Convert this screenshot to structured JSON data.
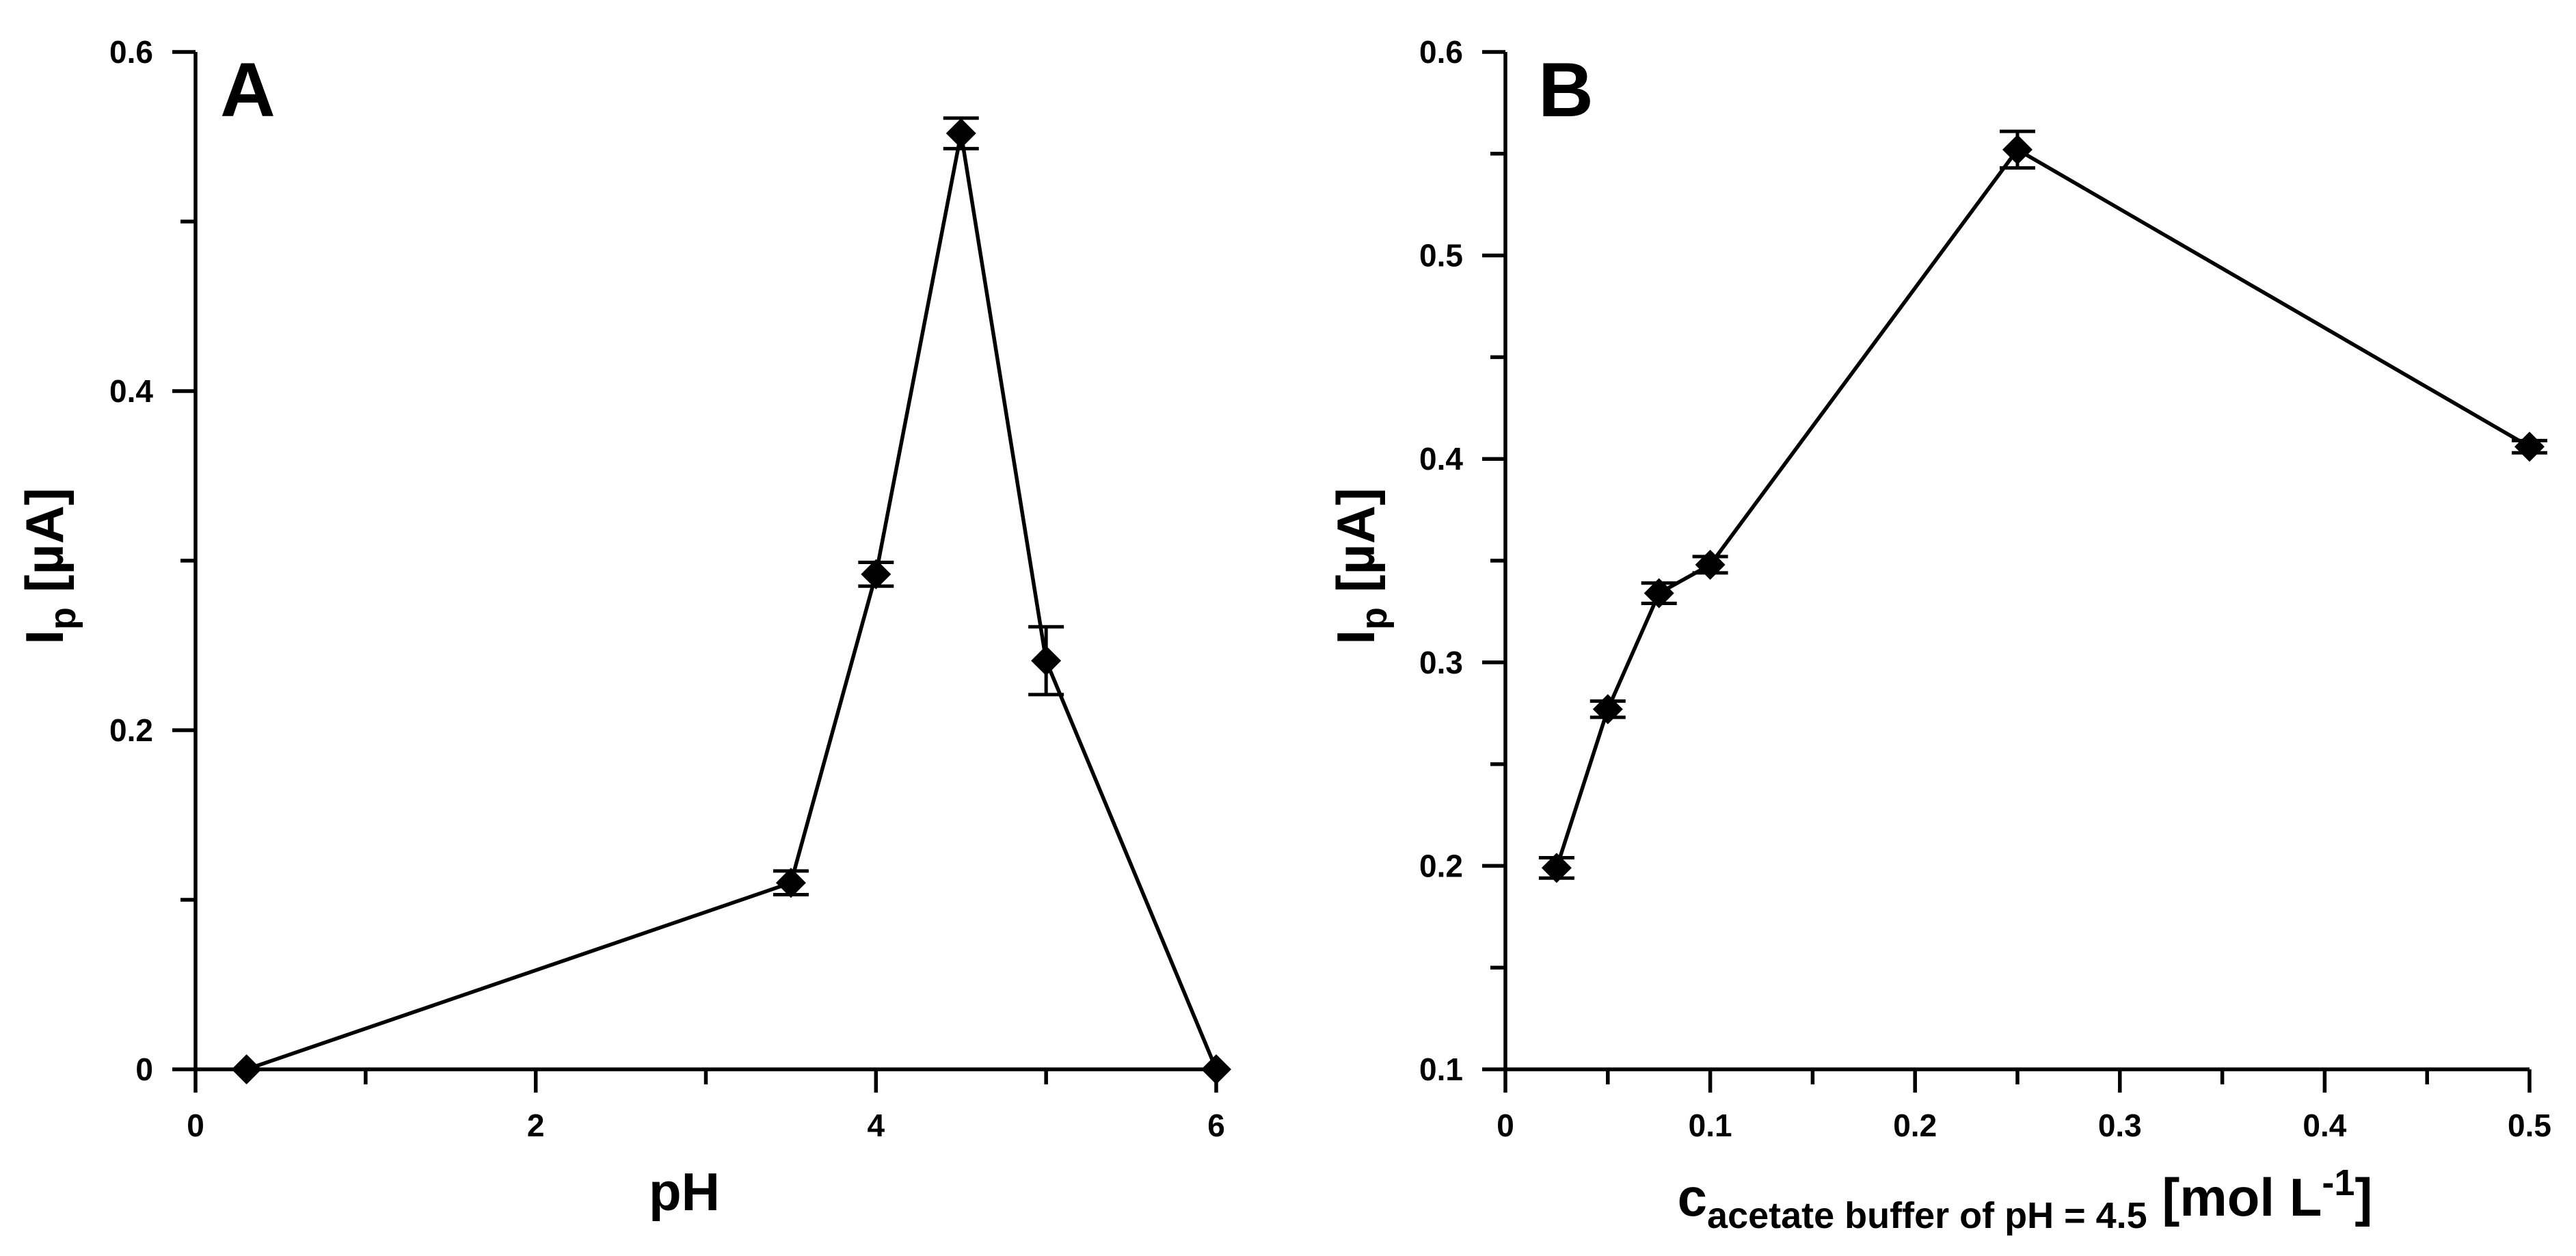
{
  "chart_data": [
    {
      "type": "line",
      "panel_label": "A",
      "x": [
        0.3,
        3.5,
        4.0,
        4.5,
        5.0,
        6.0
      ],
      "values": [
        0.0,
        0.11,
        0.292,
        0.552,
        0.241,
        0.0
      ],
      "errors": [
        0.0,
        0.007,
        0.007,
        0.009,
        0.02,
        0.0
      ],
      "xlabel": {
        "main": "pH"
      },
      "ylabel": {
        "main": "I",
        "sub": "p",
        "unit": " [µA]"
      },
      "xlim": [
        0,
        6
      ],
      "ylim": [
        0,
        0.6
      ],
      "xticks": [
        0,
        2,
        4,
        6
      ],
      "xtick_labels": [
        "0",
        "2",
        "4",
        "6"
      ],
      "yticks": [
        0,
        0.2,
        0.4,
        0.6
      ],
      "ytick_labels": [
        "0",
        "0.2",
        "0.4",
        "0.6"
      ],
      "x_minor_step": 1,
      "y_minor_step": 0.1,
      "marker": "diamond",
      "color": "#000000"
    },
    {
      "type": "line",
      "panel_label": "B",
      "x": [
        0.025,
        0.05,
        0.075,
        0.1,
        0.25,
        0.5
      ],
      "values": [
        0.199,
        0.277,
        0.334,
        0.348,
        0.552,
        0.406
      ],
      "errors": [
        0.005,
        0.004,
        0.005,
        0.004,
        0.009,
        0.003
      ],
      "xlabel": {
        "main": "c",
        "sub": "acetate buffer of pH = 4.5",
        "unit": " [mol L",
        "sup": "-1",
        "close": "]"
      },
      "ylabel": {
        "main": "I",
        "sub": "p",
        "unit": " [µA]"
      },
      "xlim": [
        0,
        0.5
      ],
      "ylim": [
        0.1,
        0.6
      ],
      "xticks": [
        0,
        0.1,
        0.2,
        0.3,
        0.4,
        0.5
      ],
      "xtick_labels": [
        "0",
        "0.1",
        "0.2",
        "0.3",
        "0.4",
        "0.5"
      ],
      "yticks": [
        0.1,
        0.2,
        0.3,
        0.4,
        0.5,
        0.6
      ],
      "ytick_labels": [
        "0.1",
        "0.2",
        "0.3",
        "0.4",
        "0.5",
        "0.6"
      ],
      "x_minor_step": 0.05,
      "y_minor_step": 0.05,
      "marker": "diamond",
      "color": "#000000"
    }
  ]
}
